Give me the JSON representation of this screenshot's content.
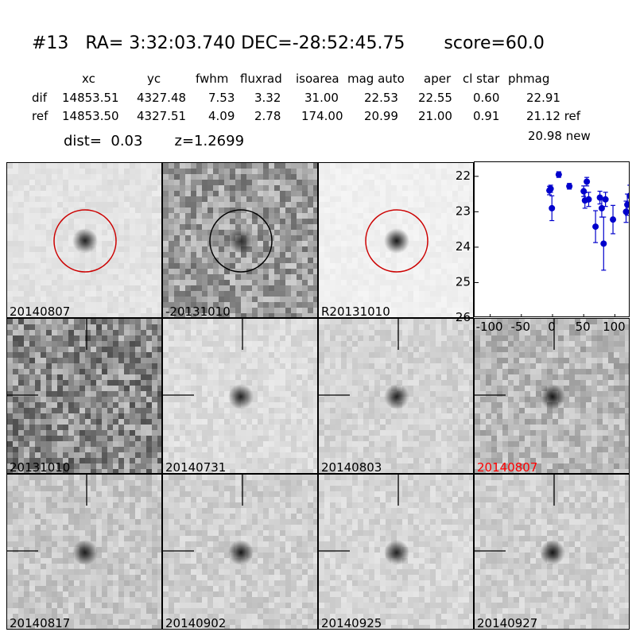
{
  "header": {
    "title": "#13   RA= 3:32:03.740 DEC=-28:52:45.75       score=60.0",
    "columns": [
      "xc",
      "yc",
      "fwhm",
      "fluxrad",
      "isoarea",
      "mag auto",
      "aper",
      "cl star",
      "phmag"
    ],
    "rows": [
      {
        "label": "dif",
        "values": [
          "14853.51",
          "4327.48",
          "7.53",
          "3.32",
          "31.00",
          "22.53",
          "22.55",
          "0.60",
          "22.91"
        ]
      },
      {
        "label": "ref",
        "values": [
          "14853.50",
          "4327.51",
          "4.09",
          "2.78",
          "174.00",
          "20.99",
          "21.00",
          "0.91",
          "21.12 ref"
        ]
      }
    ],
    "dist_line": "dist=  0.03       z=1.2699",
    "new_line": "20.98 new"
  },
  "panels": [
    {
      "label": "20140807",
      "label_color": "#000000",
      "marker": "circle",
      "marker_color": "#cc0000",
      "bg": "#e3e3e3",
      "noise": 0.08,
      "source": 0.85,
      "sx": 0.5,
      "sy": 0.5
    },
    {
      "label": "-20131010",
      "label_color": "#000000",
      "marker": "circle",
      "marker_color": "#000000",
      "bg": "#9c9c9c",
      "noise": 0.45,
      "source": 0.7,
      "sx": 0.5,
      "sy": 0.5
    },
    {
      "label": "R20131010",
      "label_color": "#000000",
      "marker": "circle",
      "marker_color": "#cc0000",
      "bg": "#f0f0f0",
      "noise": 0.05,
      "source": 0.9,
      "sx": 0.5,
      "sy": 0.5
    },
    {
      "label": "20131010",
      "label_color": "#000000",
      "marker": "cross",
      "marker_color": "#000000",
      "bg": "#8a8a8a",
      "noise": 0.55,
      "source": 0.0,
      "sx": 0.5,
      "sy": 0.5
    },
    {
      "label": "20140731",
      "label_color": "#000000",
      "marker": "cross",
      "marker_color": "#000000",
      "bg": "#dcdcdc",
      "noise": 0.12,
      "source": 0.85,
      "sx": 0.5,
      "sy": 0.5
    },
    {
      "label": "20140803",
      "label_color": "#000000",
      "marker": "cross",
      "marker_color": "#000000",
      "bg": "#d4d4d4",
      "noise": 0.14,
      "source": 0.85,
      "sx": 0.5,
      "sy": 0.5
    },
    {
      "label": "20140807",
      "label_color": "#ff0000",
      "marker": "cross",
      "marker_color": "#000000",
      "bg": "#b8b8b8",
      "noise": 0.3,
      "source": 0.9,
      "sx": 0.5,
      "sy": 0.5
    },
    {
      "label": "20140817",
      "label_color": "#000000",
      "marker": "cross",
      "marker_color": "#000000",
      "bg": "#c8c8c8",
      "noise": 0.2,
      "source": 0.85,
      "sx": 0.5,
      "sy": 0.5
    },
    {
      "label": "20140902",
      "label_color": "#000000",
      "marker": "cross",
      "marker_color": "#000000",
      "bg": "#d0d0d0",
      "noise": 0.17,
      "source": 0.9,
      "sx": 0.5,
      "sy": 0.5
    },
    {
      "label": "20140925",
      "label_color": "#000000",
      "marker": "cross",
      "marker_color": "#000000",
      "bg": "#d6d6d6",
      "noise": 0.14,
      "source": 0.85,
      "sx": 0.5,
      "sy": 0.5
    },
    {
      "label": "20140927",
      "label_color": "#000000",
      "marker": "cross",
      "marker_color": "#000000",
      "bg": "#d0d0d0",
      "noise": 0.17,
      "source": 0.9,
      "sx": 0.5,
      "sy": 0.5
    }
  ],
  "chart_data": {
    "type": "scatter",
    "title": "",
    "xlabel": "",
    "ylabel": "",
    "xlim": [
      -125,
      125
    ],
    "ylim": [
      26,
      21.6
    ],
    "yinvert": true,
    "xticks": [
      -100,
      -50,
      0,
      50,
      100
    ],
    "yticks": [
      22,
      23,
      24,
      25,
      26
    ],
    "color": "#0000cc",
    "points": [
      {
        "x": -5,
        "y": 22.4,
        "err": 0.12
      },
      {
        "x": -3,
        "y": 22.35,
        "err": 0.1
      },
      {
        "x": -1,
        "y": 22.9,
        "err": 0.35
      },
      {
        "x": 10,
        "y": 21.95,
        "err": 0.08
      },
      {
        "x": 27,
        "y": 22.28,
        "err": 0.08
      },
      {
        "x": 50,
        "y": 22.42,
        "err": 0.15
      },
      {
        "x": 52,
        "y": 22.68,
        "err": 0.22
      },
      {
        "x": 55,
        "y": 22.15,
        "err": 0.12
      },
      {
        "x": 58,
        "y": 22.65,
        "err": 0.2
      },
      {
        "x": 69,
        "y": 23.42,
        "err": 0.45
      },
      {
        "x": 76,
        "y": 22.6,
        "err": 0.18
      },
      {
        "x": 79,
        "y": 22.9,
        "err": 0.25
      },
      {
        "x": 82,
        "y": 23.9,
        "err": 0.75
      },
      {
        "x": 85,
        "y": 22.65,
        "err": 0.2
      },
      {
        "x": 97,
        "y": 23.22,
        "err": 0.4
      },
      {
        "x": 118,
        "y": 23.0,
        "err": 0.3
      },
      {
        "x": 120,
        "y": 22.8,
        "err": 0.3
      },
      {
        "x": 124,
        "y": 22.55,
        "err": 0.3
      }
    ]
  }
}
